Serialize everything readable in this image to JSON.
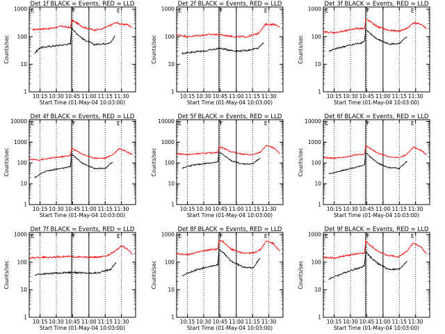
{
  "chart_data": [
    {
      "type": "line",
      "title": "Det 1f BLACK = Events, RED = LLD",
      "xlabel": "Start Time (01-May-04 10:03:00)",
      "ylabel": "Counts/sec",
      "x_ticks": [
        "10:15",
        "10:30",
        "10:45",
        "11:00",
        "11:15",
        "11:30"
      ],
      "y_ticks": [
        "1",
        "10",
        "100",
        "1000"
      ],
      "xlim": [
        "10:05",
        "11:43"
      ],
      "ylim": [
        1,
        1200
      ],
      "y_scale": "log",
      "vlines_solid": [
        "10:44",
        "11:00"
      ],
      "vlines_dotted": [
        "10:15",
        "10:30",
        "10:45",
        "11:15",
        "11:30"
      ],
      "flags": [
        {
          "label": "E",
          "x": "10:06"
        },
        {
          "label": "F",
          "x": "10:44"
        },
        {
          "label": "E",
          "x": "11:25"
        }
      ],
      "series": [
        {
          "color": "#ff0000",
          "x": [
            "10:08",
            "10:15",
            "10:25",
            "10:35",
            "10:43",
            "10:44",
            "10:47",
            "10:55",
            "11:05",
            "11:12",
            "11:20",
            "11:25",
            "11:30",
            "11:35",
            "11:40"
          ],
          "values": [
            180,
            190,
            200,
            240,
            210,
            400,
            350,
            220,
            175,
            190,
            260,
            330,
            280,
            280,
            220
          ]
        },
        {
          "color": "#000000",
          "x": [
            "10:10",
            "10:15",
            "10:25",
            "10:35",
            "10:43",
            "10:44",
            "10:47",
            "10:55",
            "11:05",
            "11:12",
            "11:20",
            "11:24"
          ],
          "values": [
            25,
            40,
            45,
            50,
            55,
            220,
            150,
            80,
            52,
            55,
            60,
            110
          ]
        }
      ]
    },
    {
      "type": "line",
      "title": "Det 2f BLACK = Events, RED = LLD",
      "xlabel": "Start Time (01-May-04 10:03:00)",
      "ylabel": "Counts/sec",
      "x_ticks": [
        "10:15",
        "10:30",
        "10:45",
        "11:00",
        "11:15",
        "11:30"
      ],
      "y_ticks": [
        "1",
        "10",
        "100",
        "1000"
      ],
      "xlim": [
        "10:05",
        "11:43"
      ],
      "ylim": [
        1,
        1200
      ],
      "y_scale": "log",
      "vlines_solid": [
        "10:44",
        "11:00"
      ],
      "vlines_dotted": [
        "10:15",
        "10:30",
        "10:45",
        "11:15",
        "11:30"
      ],
      "flags": [
        {
          "label": "E",
          "x": "10:06"
        },
        {
          "label": "F",
          "x": "10:44"
        },
        {
          "label": "E",
          "x": "11:25"
        }
      ],
      "series": [
        {
          "color": "#ff0000",
          "x": [
            "10:05",
            "10:15",
            "10:25",
            "10:35",
            "10:43",
            "10:44",
            "10:50",
            "11:00",
            "11:10",
            "11:20",
            "11:27",
            "11:35",
            "11:40"
          ],
          "values": [
            120,
            100,
            110,
            120,
            120,
            120,
            110,
            100,
            100,
            130,
            280,
            280,
            220
          ]
        },
        {
          "color": "#000000",
          "x": [
            "10:10",
            "10:20",
            "10:30",
            "10:40",
            "10:44",
            "10:50",
            "11:00",
            "11:10",
            "11:20",
            "11:25"
          ],
          "values": [
            25,
            28,
            30,
            35,
            38,
            35,
            30,
            32,
            38,
            60
          ]
        }
      ]
    },
    {
      "type": "line",
      "title": "Det 3f BLACK = Events, RED = LLD",
      "xlabel": "Start Time (01-May-04 10:03:00)",
      "ylabel": "Counts/sec",
      "x_ticks": [
        "10:15",
        "10:30",
        "10:45",
        "11:00",
        "11:15",
        "11:30"
      ],
      "y_ticks": [
        "1",
        "10",
        "100",
        "1000"
      ],
      "xlim": [
        "10:05",
        "11:43"
      ],
      "ylim": [
        1,
        1200
      ],
      "y_scale": "log",
      "vlines_solid": [
        "10:44",
        "11:00"
      ],
      "vlines_dotted": [
        "10:15",
        "10:30",
        "10:45",
        "11:15",
        "11:30"
      ],
      "flags": [
        {
          "label": "E",
          "x": "10:06"
        },
        {
          "label": "F",
          "x": "10:44"
        },
        {
          "label": "E",
          "x": "11:25"
        }
      ],
      "series": [
        {
          "color": "#ff0000",
          "x": [
            "10:05",
            "10:15",
            "10:25",
            "10:35",
            "10:43",
            "10:44",
            "10:47",
            "10:55",
            "11:05",
            "11:15",
            "11:22",
            "11:28",
            "11:35",
            "11:40"
          ],
          "values": [
            150,
            140,
            160,
            200,
            200,
            420,
            380,
            230,
            170,
            160,
            200,
            320,
            280,
            200
          ]
        },
        {
          "color": "#000000",
          "x": [
            "10:10",
            "10:20",
            "10:30",
            "10:40",
            "10:43",
            "10:44",
            "10:48",
            "10:55",
            "11:05",
            "11:15",
            "11:22"
          ],
          "values": [
            30,
            40,
            50,
            60,
            70,
            180,
            130,
            80,
            55,
            55,
            100
          ]
        }
      ]
    },
    {
      "type": "line",
      "title": "Det 4f BLACK = Events, RED = LLD",
      "xlabel": "Start Time (01-May-04 10:03:00)",
      "ylabel": "Counts/sec",
      "x_ticks": [
        "10:15",
        "10:30",
        "10:45",
        "11:00",
        "11:15",
        "11:30"
      ],
      "y_ticks": [
        "1",
        "10",
        "100",
        "1000",
        "10000"
      ],
      "xlim": [
        "10:05",
        "11:43"
      ],
      "ylim": [
        1,
        12000
      ],
      "y_scale": "log",
      "vlines_solid": [
        "10:44",
        "11:00"
      ],
      "vlines_dotted": [
        "10:15",
        "10:30",
        "10:45",
        "11:15",
        "11:30"
      ],
      "flags": [
        {
          "label": "E",
          "x": "10:06"
        },
        {
          "label": "F",
          "x": "10:44"
        },
        {
          "label": "E",
          "x": "11:25"
        }
      ],
      "series": [
        {
          "color": "#ff0000",
          "x": [
            "10:05",
            "10:15",
            "10:25",
            "10:35",
            "10:43",
            "10:44",
            "10:47",
            "10:55",
            "11:05",
            "11:15",
            "11:22",
            "11:28",
            "11:35",
            "11:40"
          ],
          "values": [
            150,
            140,
            170,
            200,
            230,
            500,
            420,
            250,
            170,
            170,
            250,
            500,
            350,
            250
          ]
        },
        {
          "color": "#000000",
          "x": [
            "10:10",
            "10:20",
            "10:30",
            "10:40",
            "10:43",
            "10:44",
            "10:48",
            "10:55",
            "11:05",
            "11:15",
            "11:22"
          ],
          "values": [
            20,
            40,
            50,
            60,
            70,
            260,
            180,
            90,
            55,
            55,
            110
          ]
        }
      ]
    },
    {
      "type": "line",
      "title": "Det 5f BLACK = Events, RED = LLD",
      "xlabel": "Start Time (01-May-04 10:03:00)",
      "ylabel": "Counts/sec",
      "x_ticks": [
        "10:15",
        "10:30",
        "10:45",
        "11:00",
        "11:15",
        "11:30"
      ],
      "y_ticks": [
        "1",
        "10",
        "100",
        "1000",
        "10000"
      ],
      "xlim": [
        "10:05",
        "11:43"
      ],
      "ylim": [
        1,
        12000
      ],
      "y_scale": "log",
      "vlines_solid": [
        "10:44",
        "11:00"
      ],
      "vlines_dotted": [
        "10:15",
        "10:30",
        "10:45",
        "11:15",
        "11:30"
      ],
      "flags": [
        {
          "label": "E",
          "x": "10:06"
        },
        {
          "label": "F",
          "x": "10:44"
        },
        {
          "label": "E",
          "x": "11:25"
        }
      ],
      "series": [
        {
          "color": "#ff0000",
          "x": [
            "10:05",
            "10:15",
            "10:25",
            "10:35",
            "10:43",
            "10:44",
            "10:48",
            "10:55",
            "11:05",
            "11:15",
            "11:22",
            "11:28",
            "11:35",
            "11:40"
          ],
          "values": [
            280,
            250,
            280,
            300,
            320,
            600,
            520,
            350,
            270,
            240,
            330,
            700,
            500,
            280
          ]
        },
        {
          "color": "#000000",
          "x": [
            "10:10",
            "10:15",
            "10:25",
            "10:35",
            "10:43",
            "10:44",
            "10:48",
            "10:55",
            "11:05",
            "11:15",
            "11:22"
          ],
          "values": [
            55,
            70,
            85,
            100,
            110,
            320,
            250,
            130,
            90,
            90,
            170
          ]
        }
      ]
    },
    {
      "type": "line",
      "title": "Det 6f BLACK = Events, RED = LLD",
      "xlabel": "Start Time (01-May-04 10:03:00)",
      "ylabel": "Counts/sec",
      "x_ticks": [
        "10:15",
        "10:30",
        "10:45",
        "11:00",
        "11:15",
        "11:30"
      ],
      "y_ticks": [
        "1",
        "10",
        "100",
        "1000",
        "10000"
      ],
      "xlim": [
        "10:05",
        "11:43"
      ],
      "ylim": [
        1,
        12000
      ],
      "y_scale": "log",
      "vlines_solid": [
        "10:44",
        "11:00"
      ],
      "vlines_dotted": [
        "10:15",
        "10:30",
        "10:45",
        "11:15",
        "11:30"
      ],
      "flags": [
        {
          "label": "E",
          "x": "10:06"
        },
        {
          "label": "F",
          "x": "10:44"
        },
        {
          "label": "E",
          "x": "11:25"
        }
      ],
      "series": [
        {
          "color": "#ff0000",
          "x": [
            "10:05",
            "10:15",
            "10:25",
            "10:35",
            "10:43",
            "10:44",
            "10:47",
            "10:55",
            "11:05",
            "11:15",
            "11:22",
            "11:28",
            "11:35",
            "11:40"
          ],
          "values": [
            180,
            170,
            190,
            250,
            260,
            700,
            550,
            300,
            200,
            180,
            260,
            600,
            400,
            250
          ]
        },
        {
          "color": "#000000",
          "x": [
            "10:10",
            "10:20",
            "10:30",
            "10:40",
            "10:43",
            "10:44",
            "10:48",
            "10:55",
            "11:05",
            "11:15",
            "11:22"
          ],
          "values": [
            30,
            40,
            55,
            70,
            80,
            330,
            200,
            100,
            60,
            55,
            120
          ]
        }
      ]
    },
    {
      "type": "line",
      "title": "Det 7f BLACK = Events, RED = LLD",
      "xlabel": "Start Time (01-May-04 10:03:00)",
      "ylabel": "Counts/sec",
      "x_ticks": [
        "10:15",
        "10:30",
        "10:45",
        "11:00",
        "11:15",
        "11:30"
      ],
      "y_ticks": [
        "1",
        "10",
        "100",
        "1000"
      ],
      "xlim": [
        "10:05",
        "11:43"
      ],
      "ylim": [
        1,
        1200
      ],
      "y_scale": "log",
      "vlines_solid": [
        "10:44",
        "11:00"
      ],
      "vlines_dotted": [
        "10:15",
        "10:30",
        "10:45",
        "11:15",
        "11:30"
      ],
      "flags": [
        {
          "label": "E",
          "x": "10:06"
        },
        {
          "label": "F",
          "x": "10:44"
        },
        {
          "label": "E",
          "x": "11:25"
        }
      ],
      "series": [
        {
          "color": "#ff0000",
          "x": [
            "10:05",
            "10:15",
            "10:25",
            "10:35",
            "10:44",
            "10:55",
            "11:05",
            "11:15",
            "11:25",
            "11:30",
            "11:35",
            "11:40"
          ],
          "values": [
            140,
            150,
            150,
            160,
            160,
            150,
            150,
            160,
            260,
            400,
            300,
            200
          ]
        },
        {
          "color": "#000000",
          "x": [
            "10:10",
            "10:20",
            "10:30",
            "10:40",
            "10:50",
            "11:00",
            "11:10",
            "11:20",
            "11:25"
          ],
          "values": [
            35,
            38,
            40,
            42,
            42,
            40,
            42,
            55,
            100
          ]
        }
      ]
    },
    {
      "type": "line",
      "title": "Det 8f BLACK = Events, RED = LLD",
      "xlabel": "Start Time (01-May-04 10:03:00)",
      "ylabel": "Counts/sec",
      "x_ticks": [
        "10:15",
        "10:30",
        "10:45",
        "11:00",
        "11:15",
        "11:30"
      ],
      "y_ticks": [
        "1",
        "10",
        "100",
        "1000"
      ],
      "xlim": [
        "10:05",
        "11:43"
      ],
      "ylim": [
        1,
        1200
      ],
      "y_scale": "log",
      "vlines_solid": [
        "10:44",
        "11:00"
      ],
      "vlines_dotted": [
        "10:15",
        "10:30",
        "10:45",
        "11:15",
        "11:30"
      ],
      "flags": [
        {
          "label": "E",
          "x": "10:06"
        },
        {
          "label": "F",
          "x": "10:44"
        },
        {
          "label": "E",
          "x": "11:25"
        }
      ],
      "series": [
        {
          "color": "#ff0000",
          "x": [
            "10:05",
            "10:15",
            "10:25",
            "10:35",
            "10:43",
            "10:44",
            "10:48",
            "10:55",
            "11:05",
            "11:15",
            "11:22",
            "11:28",
            "11:35",
            "11:40"
          ],
          "values": [
            200,
            190,
            230,
            280,
            300,
            600,
            550,
            300,
            220,
            210,
            280,
            600,
            450,
            250
          ]
        },
        {
          "color": "#000000",
          "x": [
            "10:10",
            "10:15",
            "10:25",
            "10:35",
            "10:43",
            "10:44",
            "10:48",
            "10:55",
            "11:05",
            "11:15",
            "11:22"
          ],
          "values": [
            30,
            40,
            55,
            70,
            80,
            300,
            220,
            110,
            70,
            60,
            140
          ]
        }
      ]
    },
    {
      "type": "line",
      "title": "Det 9f BLACK = Events, RED = LLD",
      "xlabel": "Start Time (01-May-04 10:03:00)",
      "ylabel": "Counts/sec",
      "x_ticks": [
        "10:15",
        "10:30",
        "10:45",
        "11:00",
        "11:15",
        "11:30"
      ],
      "y_ticks": [
        "1",
        "10",
        "100",
        "1000"
      ],
      "xlim": [
        "10:05",
        "11:43"
      ],
      "ylim": [
        1,
        1200
      ],
      "y_scale": "log",
      "vlines_solid": [
        "10:44",
        "11:00"
      ],
      "vlines_dotted": [
        "10:15",
        "10:30",
        "10:45",
        "11:15",
        "11:30"
      ],
      "flags": [
        {
          "label": "E",
          "x": "10:06"
        },
        {
          "label": "F",
          "x": "10:44"
        },
        {
          "label": "E",
          "x": "11:25"
        }
      ],
      "series": [
        {
          "color": "#ff0000",
          "x": [
            "10:05",
            "10:15",
            "10:25",
            "10:35",
            "10:43",
            "10:44",
            "10:47",
            "10:55",
            "11:05",
            "11:15",
            "11:22",
            "11:28",
            "11:35",
            "11:40"
          ],
          "values": [
            150,
            140,
            170,
            200,
            220,
            550,
            450,
            250,
            170,
            160,
            250,
            500,
            350,
            200
          ]
        },
        {
          "color": "#000000",
          "x": [
            "10:10",
            "10:20",
            "10:30",
            "10:40",
            "10:43",
            "10:44",
            "10:48",
            "10:55",
            "11:05",
            "11:15",
            "11:22"
          ],
          "values": [
            25,
            35,
            50,
            65,
            75,
            250,
            160,
            90,
            55,
            55,
            110
          ]
        }
      ]
    }
  ]
}
